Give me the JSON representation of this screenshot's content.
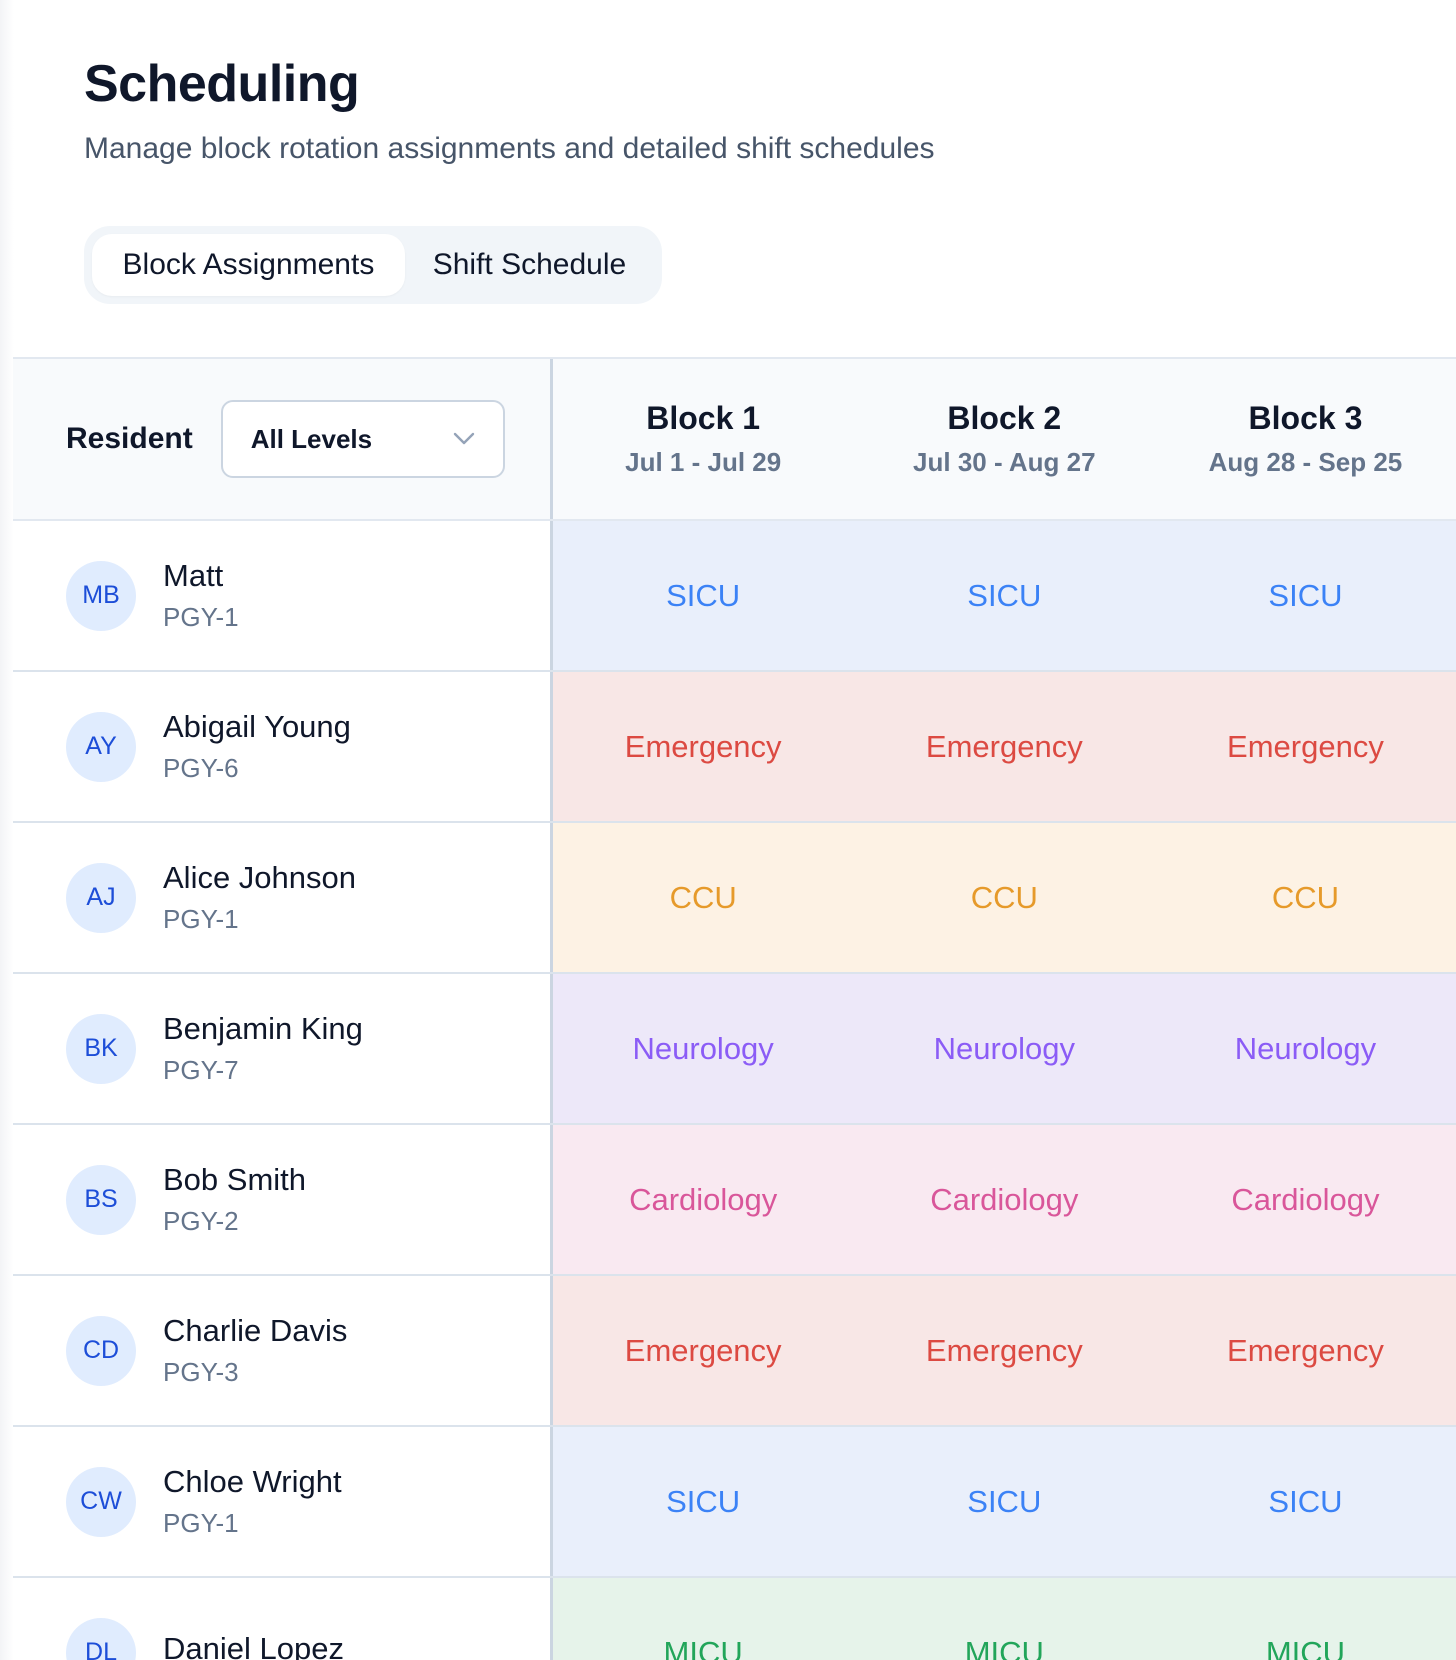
{
  "header": {
    "title": "Scheduling",
    "subtitle": "Manage block rotation assignments and detailed shift schedules"
  },
  "tabs": [
    {
      "label": "Block Assignments",
      "active": true
    },
    {
      "label": "Shift Schedule",
      "active": false
    }
  ],
  "grid": {
    "resident_label": "Resident",
    "level_filter": {
      "value": "All Levels",
      "icon": "chevron-down-icon"
    },
    "blocks": [
      {
        "name": "Block 1",
        "dates": "Jul 1 - Jul 29"
      },
      {
        "name": "Block 2",
        "dates": "Jul 30 - Aug 27"
      },
      {
        "name": "Block 3",
        "dates": "Aug 28 - Sep 25"
      }
    ],
    "rows": [
      {
        "initials": "MB",
        "name": "Matt",
        "level": "PGY-1",
        "rotation_key": "sicu",
        "assignments": [
          "SICU",
          "SICU",
          "SICU"
        ]
      },
      {
        "initials": "AY",
        "name": "Abigail Young",
        "level": "PGY-6",
        "rotation_key": "emergency",
        "assignments": [
          "Emergency",
          "Emergency",
          "Emergency"
        ]
      },
      {
        "initials": "AJ",
        "name": "Alice Johnson",
        "level": "PGY-1",
        "rotation_key": "ccu",
        "assignments": [
          "CCU",
          "CCU",
          "CCU"
        ]
      },
      {
        "initials": "BK",
        "name": "Benjamin King",
        "level": "PGY-7",
        "rotation_key": "neurology",
        "assignments": [
          "Neurology",
          "Neurology",
          "Neurology"
        ]
      },
      {
        "initials": "BS",
        "name": "Bob Smith",
        "level": "PGY-2",
        "rotation_key": "cardiology",
        "assignments": [
          "Cardiology",
          "Cardiology",
          "Cardiology"
        ]
      },
      {
        "initials": "CD",
        "name": "Charlie Davis",
        "level": "PGY-3",
        "rotation_key": "emergency",
        "assignments": [
          "Emergency",
          "Emergency",
          "Emergency"
        ]
      },
      {
        "initials": "CW",
        "name": "Chloe Wright",
        "level": "PGY-1",
        "rotation_key": "sicu",
        "assignments": [
          "SICU",
          "SICU",
          "SICU"
        ]
      },
      {
        "initials": "DL",
        "name": "Daniel Lopez",
        "level": "",
        "rotation_key": "micu",
        "assignments": [
          "MICU",
          "MICU",
          "MICU"
        ]
      }
    ]
  },
  "colors": {
    "sicu": {
      "bg": "#e9effb",
      "text": "#3b82f6"
    },
    "emergency": {
      "bg": "#f8e7e6",
      "text": "#dc4a42"
    },
    "ccu": {
      "bg": "#fdf2e4",
      "text": "#e69a2a"
    },
    "neurology": {
      "bg": "#ede8f9",
      "text": "#8b5cf6"
    },
    "cardiology": {
      "bg": "#f9e9f1",
      "text": "#d9569a"
    },
    "micu": {
      "bg": "#e6f3ea",
      "text": "#22a55a"
    }
  }
}
